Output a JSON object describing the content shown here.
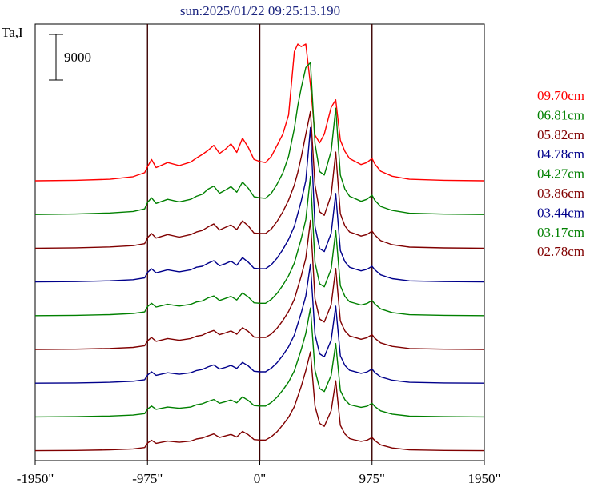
{
  "header": {
    "title": "sun:2025/01/22 09:25:13.190"
  },
  "chart_data": {
    "type": "line",
    "title": "sun:2025/01/22 09:25:13.190",
    "ylabel": "Ta,I",
    "xlabel": "",
    "scale_bar": {
      "label": "9000",
      "value": 9000
    },
    "x_ticks": [
      "-1950\"",
      "-975\"",
      "0\"",
      "975\"",
      "1950\""
    ],
    "x_tick_values": [
      -1950,
      -975,
      0,
      975,
      1950
    ],
    "xlim": [
      -1950,
      1950
    ],
    "vertical_lines": [
      -975,
      0,
      975
    ],
    "grid": false,
    "legend_position": "right",
    "x": [
      -1950,
      -1600,
      -1300,
      -1100,
      -1000,
      -975,
      -940,
      -900,
      -800,
      -700,
      -600,
      -550,
      -500,
      -450,
      -400,
      -350,
      -300,
      -250,
      -200,
      -150,
      -100,
      -50,
      0,
      50,
      100,
      150,
      200,
      250,
      300,
      330,
      360,
      400,
      440,
      480,
      520,
      560,
      620,
      660,
      700,
      740,
      780,
      820,
      880,
      930,
      975,
      1000,
      1050,
      1150,
      1300,
      1600,
      1950
    ],
    "series": [
      {
        "name": "09.70cm",
        "color": "#ff0000",
        "values": [
          0,
          100,
          300,
          800,
          1600,
          2800,
          4200,
          2600,
          3600,
          3000,
          3700,
          4500,
          5200,
          6000,
          7000,
          5400,
          6200,
          7300,
          5600,
          8400,
          6600,
          4200,
          3800,
          3600,
          4800,
          7000,
          9200,
          13000,
          25500,
          27000,
          26500,
          27000,
          19000,
          9000,
          7500,
          9200,
          14500,
          16000,
          8000,
          5800,
          4400,
          3900,
          3200,
          3600,
          4400,
          3300,
          1900,
          900,
          300,
          100,
          0
        ]
      },
      {
        "name": "06.81cm",
        "color": "#008000",
        "values": [
          0,
          100,
          300,
          600,
          1100,
          2400,
          3300,
          2200,
          3000,
          2500,
          3000,
          3600,
          4000,
          5000,
          5600,
          4200,
          4800,
          5500,
          4400,
          6400,
          5200,
          3500,
          3300,
          3200,
          4200,
          6000,
          8200,
          11500,
          17000,
          21500,
          25000,
          29000,
          30000,
          14000,
          8500,
          7800,
          12500,
          21000,
          7800,
          5000,
          3600,
          3200,
          2600,
          3000,
          3800,
          2800,
          1600,
          800,
          250,
          80,
          0
        ]
      },
      {
        "name": "05.82cm",
        "color": "#800000",
        "values": [
          0,
          80,
          250,
          500,
          900,
          2100,
          2900,
          2000,
          2700,
          2200,
          2700,
          3200,
          3500,
          4200,
          4800,
          3600,
          4100,
          4600,
          3700,
          5400,
          4400,
          3000,
          2900,
          2900,
          3800,
          5300,
          7200,
          9500,
          12500,
          15000,
          18000,
          22500,
          27000,
          12500,
          7200,
          6500,
          10500,
          19000,
          6800,
          4400,
          3200,
          2900,
          2400,
          2700,
          3400,
          2600,
          1500,
          700,
          220,
          70,
          0
        ]
      },
      {
        "name": "04.78cm",
        "color": "#00008b",
        "values": [
          0,
          70,
          220,
          450,
          800,
          1900,
          2600,
          1800,
          2400,
          2000,
          2400,
          2900,
          3100,
          3700,
          4200,
          3200,
          3600,
          4100,
          3300,
          4800,
          3900,
          2700,
          2600,
          2600,
          3400,
          4700,
          6400,
          8400,
          11000,
          13500,
          16000,
          20000,
          30500,
          11000,
          6600,
          6000,
          9600,
          17500,
          6200,
          4000,
          2900,
          2600,
          2200,
          2500,
          3100,
          2400,
          1400,
          650,
          200,
          60,
          0
        ]
      },
      {
        "name": "04.27cm",
        "color": "#008000",
        "values": [
          0,
          60,
          200,
          420,
          750,
          1800,
          2450,
          1700,
          2250,
          1900,
          2250,
          2700,
          2900,
          3500,
          3900,
          3000,
          3400,
          3800,
          3100,
          4500,
          3700,
          2550,
          2450,
          2450,
          3200,
          4400,
          6000,
          7900,
          10400,
          12800,
          15200,
          19000,
          27500,
          10500,
          6300,
          5700,
          9200,
          16800,
          5900,
          3800,
          2750,
          2500,
          2100,
          2400,
          3000,
          2300,
          1350,
          620,
          190,
          60,
          0
        ]
      },
      {
        "name": "03.86cm",
        "color": "#800000",
        "values": [
          0,
          55,
          190,
          400,
          720,
          1700,
          2350,
          1600,
          2150,
          1800,
          2150,
          2600,
          2800,
          3350,
          3750,
          2900,
          3250,
          3650,
          3000,
          4300,
          3550,
          2450,
          2350,
          2350,
          3050,
          4200,
          5700,
          7500,
          9900,
          12200,
          14500,
          18000,
          25500,
          10000,
          6000,
          5400,
          8800,
          16000,
          5600,
          3650,
          2650,
          2400,
          2000,
          2300,
          2900,
          2200,
          1300,
          600,
          180,
          55,
          0
        ]
      },
      {
        "name": "03.44cm",
        "color": "#00008b",
        "values": [
          0,
          50,
          180,
          380,
          680,
          1600,
          2250,
          1550,
          2050,
          1750,
          2050,
          2500,
          2700,
          3200,
          3600,
          2800,
          3100,
          3500,
          2900,
          4100,
          3400,
          2350,
          2250,
          2250,
          2950,
          4050,
          5500,
          7200,
          9500,
          11700,
          13900,
          17200,
          23500,
          9600,
          5800,
          5200,
          8500,
          15200,
          5400,
          3500,
          2550,
          2300,
          1950,
          2200,
          2800,
          2100,
          1250,
          580,
          170,
          50,
          0
        ]
      },
      {
        "name": "03.17cm",
        "color": "#008000",
        "values": [
          0,
          50,
          170,
          360,
          650,
          1550,
          2150,
          1500,
          1950,
          1700,
          1950,
          2400,
          2600,
          3050,
          3450,
          2700,
          3000,
          3350,
          2800,
          3950,
          3250,
          2250,
          2150,
          2150,
          2850,
          3900,
          5300,
          6900,
          9100,
          11200,
          13300,
          16500,
          21500,
          9200,
          5600,
          5000,
          8200,
          14500,
          5200,
          3400,
          2450,
          2200,
          1900,
          2100,
          2700,
          2050,
          1200,
          560,
          165,
          50,
          0
        ]
      },
      {
        "name": "02.78cm",
        "color": "#800000",
        "values": [
          0,
          45,
          160,
          340,
          620,
          1500,
          2050,
          1450,
          1900,
          1650,
          1900,
          2300,
          2500,
          2900,
          3300,
          2600,
          2900,
          3200,
          2700,
          3800,
          3150,
          2200,
          2100,
          2100,
          2750,
          3750,
          5100,
          6600,
          8700,
          10700,
          12700,
          15800,
          19500,
          8800,
          5400,
          4800,
          7900,
          13800,
          5000,
          3300,
          2400,
          2150,
          1850,
          2050,
          2600,
          2000,
          1150,
          540,
          160,
          45,
          0
        ]
      }
    ]
  }
}
